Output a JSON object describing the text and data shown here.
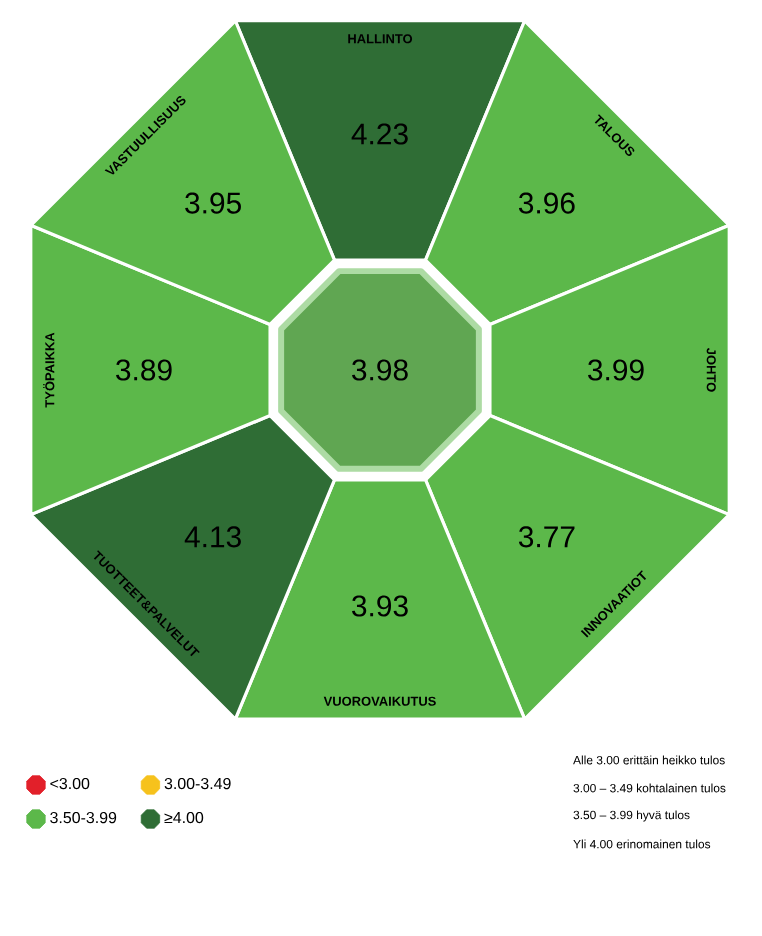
{
  "chart_data": {
    "type": "other",
    "categories": [
      "HALLINTO",
      "TALOUS",
      "JOHTO",
      "INNOVAATIOT",
      "VUOROVAIKUTUS",
      "TUOTTEET&PALVELUT",
      "TYÖPAIKKA",
      "VASTUULLISUUS"
    ],
    "series": [
      {
        "name": "<3.00",
        "color": "#e2202a",
        "values": [
          null,
          null,
          null,
          null,
          null,
          null,
          null,
          null
        ]
      },
      {
        "name": "3.00-3.49",
        "color": "#f6c21c",
        "values": [
          null,
          null,
          null,
          null,
          null,
          null,
          null,
          null
        ]
      },
      {
        "name": "3.50-3.99",
        "color": "#5cb84a",
        "values": [
          null,
          3.96,
          3.99,
          3.77,
          3.93,
          null,
          3.89,
          3.95
        ]
      },
      {
        "name": "≥4.00",
        "color": "#2f6d35",
        "values": [
          4.23,
          null,
          null,
          null,
          null,
          4.13,
          null,
          null
        ]
      }
    ],
    "data_labels": true,
    "legend": "bottom left",
    "annotations": [
      "3.98",
      "Alle 3.00 erittäin heikko tulos",
      "3.00 – 3.49 kohtalainen tulos",
      "3.50 – 3.99 hyvä tulos",
      "Yli 4.00 erinomainen tulos"
    ]
  }
}
